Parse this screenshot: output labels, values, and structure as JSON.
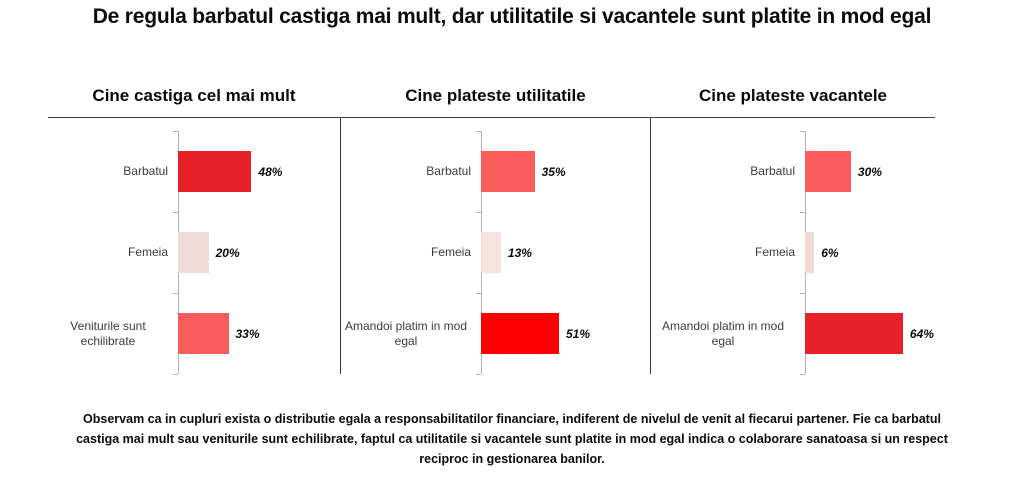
{
  "page": {
    "title": "De regula barbatul castiga mai mult, dar utilitatile si vacantele sunt platite in mod egal",
    "footer": "Observam ca in cupluri exista o distributie egala a responsabilitatilor financiare, indiferent de nivelul de venit al fiecarui partener. Fie ca barbatul castiga mai mult sau veniturile sunt echilibrate, faptul ca utilitatile si vacantele sunt platite in mod egal indica o colaborare sanatoasa si un respect reciproc in gestionarea banilor."
  },
  "chart_data": [
    {
      "type": "bar",
      "orientation": "horizontal",
      "title": "Cine castiga cel mai mult",
      "categories": [
        "Barbatul",
        "Femeia",
        "Veniturile sunt echilibrate"
      ],
      "values": [
        48,
        20,
        33
      ],
      "value_labels": [
        "48%",
        "20%",
        "33%"
      ],
      "bar_colors": [
        "#e62129",
        "#f2dcd9",
        "#f95d5b"
      ],
      "xlim": [
        0,
        100
      ],
      "grid": false,
      "legend": false
    },
    {
      "type": "bar",
      "orientation": "horizontal",
      "title": "Cine plateste utilitatile",
      "categories": [
        "Barbatul",
        "Femeia",
        "Amandoi platim in mod egal"
      ],
      "values": [
        35,
        13,
        51
      ],
      "value_labels": [
        "35%",
        "13%",
        "51%"
      ],
      "bar_colors": [
        "#f95d5b",
        "#f6e3e0",
        "#fe0000"
      ],
      "xlim": [
        0,
        100
      ],
      "grid": false,
      "legend": false
    },
    {
      "type": "bar",
      "orientation": "horizontal",
      "title": "Cine plateste vacantele",
      "categories": [
        "Barbatul",
        "Femeia",
        "Amandoi platim in mod egal"
      ],
      "values": [
        30,
        6,
        64
      ],
      "value_labels": [
        "30%",
        "6%",
        "64%"
      ],
      "bar_colors": [
        "#f95d5b",
        "#f2dcd9",
        "#e62129"
      ],
      "xlim": [
        0,
        100
      ],
      "grid": false,
      "legend": false
    }
  ]
}
